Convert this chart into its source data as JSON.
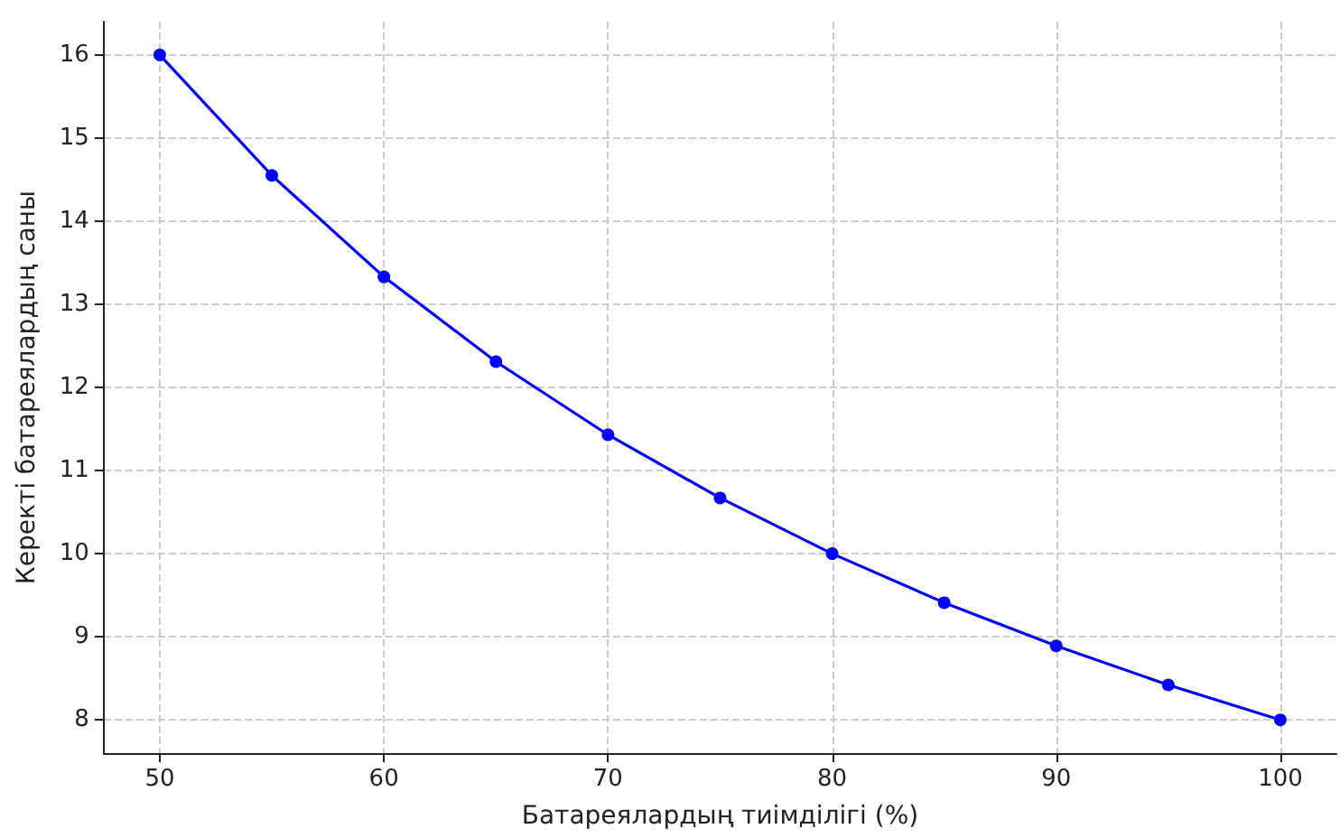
{
  "chart_data": {
    "type": "line",
    "xlabel": "Батареялардың тиімділігі (%)",
    "ylabel": "Керекті батареялардың саны",
    "x": [
      50,
      55,
      60,
      65,
      70,
      75,
      80,
      85,
      90,
      95,
      100
    ],
    "series": [
      {
        "color": "#0000ff",
        "values": [
          16,
          14.55,
          13.33,
          12.31,
          11.43,
          10.67,
          10,
          9.41,
          8.89,
          8.42,
          8
        ]
      }
    ],
    "xlim": [
      47.5,
      102.5
    ],
    "xticks": [
      50,
      60,
      70,
      80,
      90,
      100
    ],
    "ylim": [
      7.6,
      16.4
    ],
    "yticks": [
      8,
      9,
      10,
      11,
      12,
      13,
      14,
      15,
      16
    ],
    "grid": true,
    "marker": "circle",
    "line_style": "solid"
  }
}
